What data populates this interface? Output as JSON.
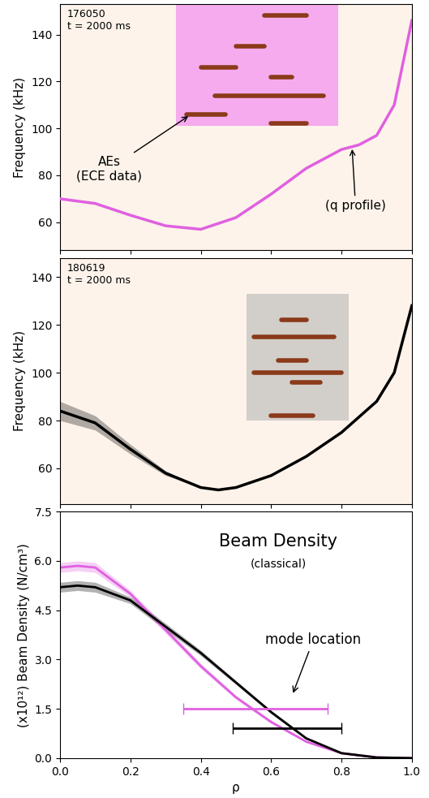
{
  "chart_data": [
    {
      "type": "spectrogram",
      "shot": "176050",
      "time": "t = 2000 ms",
      "ylabel": "Frequency (kHz)",
      "xlim": [
        0,
        1
      ],
      "ylim": [
        48,
        153
      ],
      "xticks": [
        0,
        0.2,
        0.4,
        0.6,
        0.8,
        1
      ],
      "yticks": [
        60,
        80,
        100,
        120,
        140
      ],
      "tick_labels": "y",
      "highlight": {
        "rho": [
          0.33,
          0.79
        ],
        "freq": [
          101,
          153
        ],
        "color": "#f070f0"
      },
      "modes": [
        {
          "freq": 148,
          "rho": [
            0.58,
            0.7
          ]
        },
        {
          "freq": 135,
          "rho": [
            0.5,
            0.58
          ]
        },
        {
          "freq": 126,
          "rho": [
            0.4,
            0.5
          ]
        },
        {
          "freq": 122,
          "rho": [
            0.6,
            0.66
          ]
        },
        {
          "freq": 114,
          "rho": [
            0.44,
            0.75
          ]
        },
        {
          "freq": 106,
          "rho": [
            0.36,
            0.47
          ]
        },
        {
          "freq": 102,
          "rho": [
            0.6,
            0.7
          ]
        }
      ],
      "mode_color": "#8b3a1a",
      "q_profile": {
        "x": [
          0,
          0.1,
          0.2,
          0.3,
          0.4,
          0.5,
          0.6,
          0.7,
          0.8,
          0.85,
          0.9,
          0.95,
          1.0
        ],
        "values": [
          70,
          68,
          63,
          58.5,
          57,
          62,
          72,
          83,
          91,
          93,
          97,
          110,
          146
        ],
        "color": "#e060e0"
      },
      "annotations": [
        {
          "text": "AEs\n(ECE data)"
        },
        {
          "text": "(q profile)"
        }
      ]
    },
    {
      "type": "spectrogram",
      "shot": "180619",
      "time": "t = 2000 ms",
      "ylabel": "Frequency (kHz)",
      "xlim": [
        0,
        1
      ],
      "ylim": [
        45,
        148
      ],
      "xticks": [
        0,
        0.2,
        0.4,
        0.6,
        0.8,
        1
      ],
      "yticks": [
        60,
        80,
        100,
        120,
        140
      ],
      "tick_labels": "y",
      "highlight": {
        "rho": [
          0.53,
          0.82
        ],
        "freq": [
          80,
          133
        ],
        "color": "#b0b0b0"
      },
      "modes": [
        {
          "freq": 122,
          "rho": [
            0.63,
            0.7
          ]
        },
        {
          "freq": 115,
          "rho": [
            0.55,
            0.78
          ]
        },
        {
          "freq": 105,
          "rho": [
            0.62,
            0.7
          ]
        },
        {
          "freq": 100,
          "rho": [
            0.55,
            0.8
          ]
        },
        {
          "freq": 96,
          "rho": [
            0.66,
            0.74
          ]
        },
        {
          "freq": 82,
          "rho": [
            0.6,
            0.72
          ]
        }
      ],
      "mode_color": "#8b3a1a",
      "q_profile": {
        "x": [
          0,
          0.1,
          0.2,
          0.3,
          0.4,
          0.45,
          0.5,
          0.6,
          0.7,
          0.8,
          0.9,
          0.95,
          1.0
        ],
        "values": [
          84,
          79,
          68,
          58,
          52,
          51,
          52,
          57,
          65,
          75,
          88,
          100,
          128
        ],
        "error": [
          4,
          3,
          2,
          1,
          0,
          0,
          0,
          0,
          0,
          0,
          0,
          0,
          0
        ],
        "color": "#000000"
      },
      "annotations": []
    },
    {
      "type": "line",
      "title": "Beam Density",
      "subtitle": "(classical)",
      "xlabel": "ρ",
      "ylabel": "(x10¹²) Beam Density (N/cm³)",
      "xlim": [
        0,
        1
      ],
      "ylim": [
        0,
        7.5
      ],
      "xticks": [
        {
          "value": 0,
          "label": "0.0"
        },
        0.2,
        0.4,
        0.6,
        0.8,
        {
          "value": 1,
          "label": "1.0"
        }
      ],
      "yticks": [
        {
          "value": 0,
          "label": "0.0"
        },
        1.5,
        {
          "value": 3,
          "label": "3.0"
        },
        4.5,
        {
          "value": 6,
          "label": "6.0"
        },
        7.5
      ],
      "x": [
        0,
        0.05,
        0.1,
        0.2,
        0.3,
        0.4,
        0.5,
        0.6,
        0.7,
        0.8,
        0.9,
        1.0
      ],
      "series": [
        {
          "color": "#e060e0",
          "values": [
            5.8,
            5.85,
            5.8,
            5.0,
            3.9,
            2.8,
            1.85,
            1.1,
            0.5,
            0.15,
            0.02,
            0
          ],
          "error": [
            0.15,
            0.15,
            0.15,
            0.1,
            0.1,
            0.08,
            0.06,
            0.05,
            0.03,
            0.02,
            0.01,
            0
          ]
        },
        {
          "color": "#000000",
          "values": [
            5.2,
            5.25,
            5.2,
            4.8,
            4.0,
            3.2,
            2.3,
            1.4,
            0.6,
            0.15,
            0.02,
            0
          ],
          "error": [
            0.15,
            0.15,
            0.15,
            0.1,
            0.1,
            0.08,
            0.06,
            0.05,
            0.03,
            0.02,
            0.01,
            0
          ]
        }
      ],
      "mode_location": [
        {
          "rho": [
            0.35,
            0.76
          ],
          "value": 1.5,
          "color": "#e060e0"
        },
        {
          "rho": [
            0.49,
            0.8
          ],
          "value": 0.9,
          "color": "#000000"
        }
      ],
      "annotations": [
        {
          "text": "mode location"
        }
      ]
    }
  ]
}
